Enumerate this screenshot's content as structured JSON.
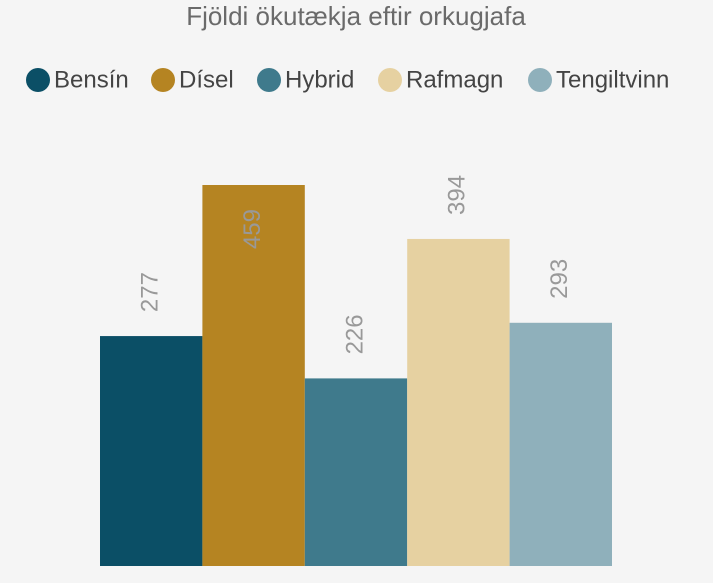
{
  "chart_data": {
    "type": "bar",
    "title": "Fjöldi ökutækja eftir orkugjafa",
    "series": [
      {
        "name": "Bensín",
        "color": "#0b4f66",
        "values": [
          277
        ]
      },
      {
        "name": "Dísel",
        "color": "#b58422",
        "values": [
          459
        ]
      },
      {
        "name": "Hybrid",
        "color": "#3f7a8c",
        "values": [
          226
        ]
      },
      {
        "name": "Rafmagn",
        "color": "#e6d1a1",
        "values": [
          394
        ]
      },
      {
        "name": "Tengiltvinn",
        "color": "#8fb0bb",
        "values": [
          293
        ]
      }
    ]
  }
}
